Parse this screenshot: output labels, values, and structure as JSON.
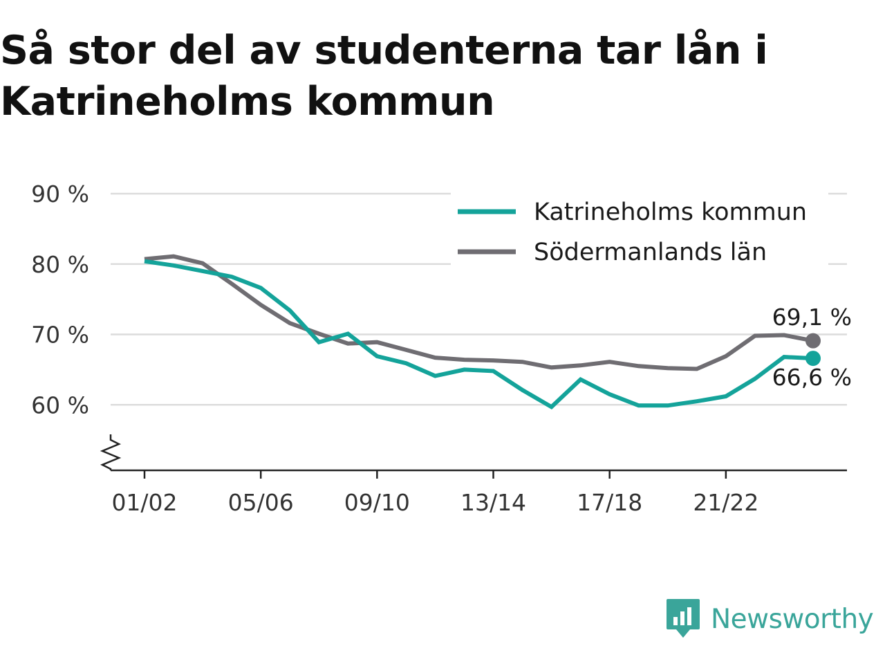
{
  "title_lines": [
    "Så stor del av studenterna tar lån i",
    "Katrineholms kommun"
  ],
  "brand": {
    "name": "Newsworthy",
    "icon": "bar-chart-speech-bubble-icon",
    "color": "#3aa59a"
  },
  "chart_data": {
    "type": "line",
    "title": "Så stor del av studenterna tar lån i Katrineholms kommun",
    "x": [
      "01/02",
      "02/03",
      "03/04",
      "04/05",
      "05/06",
      "06/07",
      "07/08",
      "08/09",
      "09/10",
      "10/11",
      "11/12",
      "12/13",
      "13/14",
      "14/15",
      "15/16",
      "16/17",
      "17/18",
      "18/19",
      "19/20",
      "20/21",
      "21/22",
      "22/23",
      "23/24",
      "24/25"
    ],
    "x_ticks": [
      "01/02",
      "05/06",
      "09/10",
      "13/14",
      "17/18",
      "21/22"
    ],
    "ylim": [
      50,
      90
    ],
    "y_ticks": [
      60,
      70,
      80,
      90
    ],
    "y_tick_labels": [
      "60 %",
      "70 %",
      "80 %",
      "90 %"
    ],
    "axis_break": true,
    "grid": true,
    "legend_position": "top-right",
    "series": [
      {
        "name": "Katrineholms kommun",
        "color": "#14a39a",
        "values": [
          80.4,
          79.8,
          79.0,
          78.2,
          76.6,
          73.4,
          68.9,
          70.1,
          66.9,
          65.9,
          64.1,
          65.0,
          64.8,
          62.1,
          59.7,
          63.6,
          61.5,
          59.9,
          59.9,
          60.5,
          61.2,
          63.7,
          66.8,
          66.6
        ],
        "end_label": "66,6 %"
      },
      {
        "name": "Södermanlands län",
        "color": "#6f6d72",
        "values": [
          80.7,
          81.1,
          80.1,
          77.2,
          74.2,
          71.6,
          70.1,
          68.7,
          68.9,
          67.8,
          66.7,
          66.4,
          66.3,
          66.1,
          65.3,
          65.6,
          66.1,
          65.5,
          65.2,
          65.1,
          66.9,
          69.8,
          69.9,
          69.1
        ],
        "end_label": "69,1 %"
      }
    ]
  }
}
